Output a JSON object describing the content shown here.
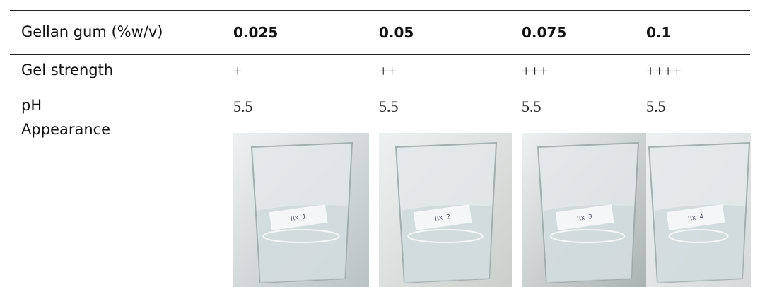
{
  "table": {
    "header": [
      "Gellan gum (%w/v)",
      "0.025",
      "0.05",
      "0.075",
      "0.1"
    ],
    "rows": [
      [
        "Gel strength",
        "+",
        "++",
        "+++",
        "++++"
      ],
      [
        "pH",
        "5.5",
        "5.5",
        "5.5",
        "5.5"
      ],
      [
        "Appearance"
      ]
    ],
    "photo_labels": [
      "Rx 1",
      "Rx 2",
      "Rx 3",
      "Rx 4"
    ]
  }
}
